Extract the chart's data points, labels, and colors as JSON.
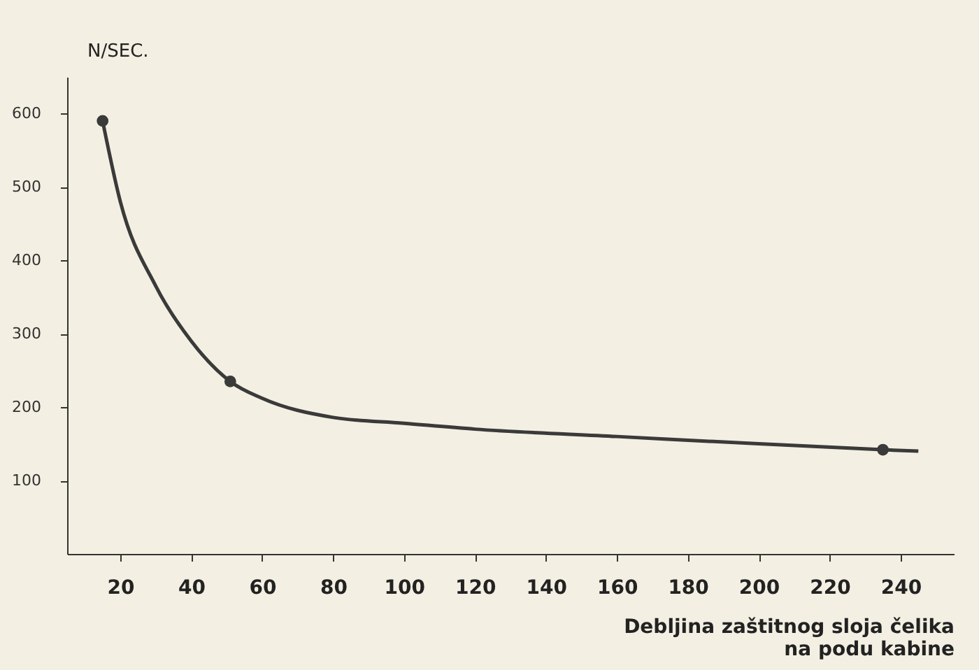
{
  "chart_data": {
    "type": "line",
    "xlabel": "Debljina zaštitnog sloja čelika\nna podu kabine",
    "ylabel": "N/SEC.",
    "series": [
      {
        "color": "#3a3a3a",
        "x": [
          15,
          20,
          30,
          40,
          51,
          60,
          80,
          100,
          120,
          160,
          200,
          235,
          245
        ],
        "values": [
          590,
          480,
          365,
          290,
          235,
          212,
          186,
          178,
          170,
          160,
          150,
          142,
          140
        ]
      },
      {
        "type": "scatter",
        "color": "#3a3a3a",
        "marker": "circle",
        "x": [
          15,
          51,
          235
        ],
        "values": [
          590,
          235,
          142
        ]
      }
    ],
    "xlim": [
      5,
      255
    ],
    "xticks": [
      20,
      40,
      60,
      80,
      100,
      120,
      140,
      160,
      180,
      200,
      220,
      240
    ],
    "ylim": [
      0,
      650
    ],
    "yticks": [
      100,
      200,
      300,
      400,
      500,
      600
    ],
    "grid": false,
    "line_style": "solid"
  }
}
